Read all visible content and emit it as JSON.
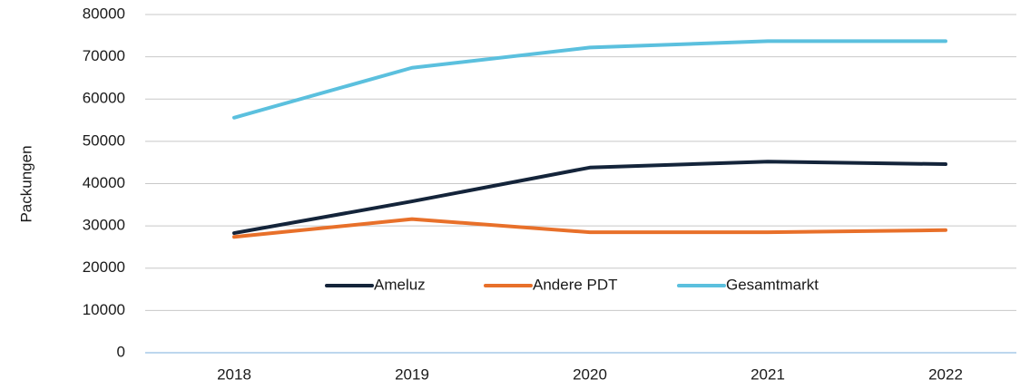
{
  "chart_data": {
    "type": "line",
    "y_label": "Packungen",
    "categories": [
      "2018",
      "2019",
      "2020",
      "2021",
      "2022"
    ],
    "series": [
      {
        "name": "Ameluz",
        "color": "#14243a",
        "values": [
          28300,
          35800,
          43800,
          45200,
          44600
        ]
      },
      {
        "name": "Andere PDT",
        "color": "#e8702a",
        "values": [
          27400,
          31600,
          28500,
          28500,
          29000
        ]
      },
      {
        "name": "Gesamtmarkt",
        "color": "#5bc0de",
        "values": [
          55600,
          67400,
          72200,
          73700,
          73700
        ]
      }
    ],
    "ylim": [
      0,
      80000
    ],
    "yticks": [
      0,
      10000,
      20000,
      30000,
      40000,
      50000,
      60000,
      70000,
      80000
    ],
    "grid": true,
    "legend": "inside-bottom"
  }
}
